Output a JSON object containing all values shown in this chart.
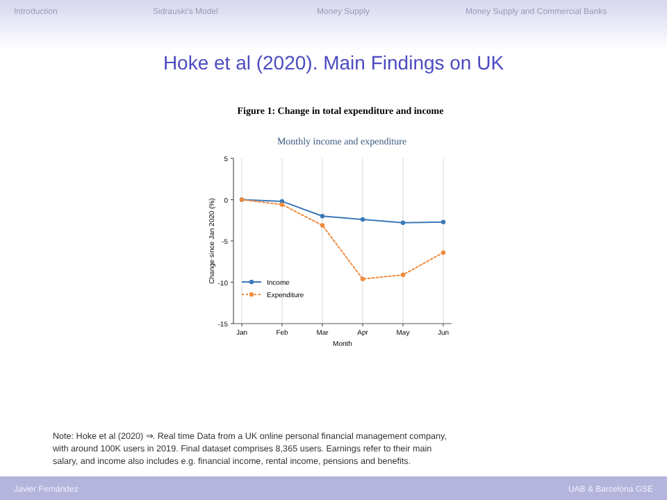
{
  "chart_data": {
    "type": "line",
    "title": "Monthly income and expenditure",
    "subtitle": "Figure 1: Change in total expenditure and income",
    "xlabel": "Month",
    "ylabel": "Change since Jan 2020 (%)",
    "categories": [
      "Jan",
      "Feb",
      "Mar",
      "Apr",
      "May",
      "Jun"
    ],
    "series": [
      {
        "name": "Income",
        "color": "#3a78b8",
        "values": [
          0,
          -0.2,
          -2.0,
          -2.4,
          -2.8,
          -2.7
        ],
        "line_style": "solid"
      },
      {
        "name": "Expenditure",
        "color": "#f08a3c",
        "values": [
          0,
          -0.6,
          -3.1,
          -9.6,
          -9.1,
          -6.4
        ],
        "line_style": "dotted"
      }
    ],
    "ylim": [
      -15,
      5
    ],
    "yticks": [
      5,
      0,
      -5,
      -10,
      -15
    ],
    "grid": "x",
    "legend": "bottom left",
    "marker": "circle",
    "annotations": [
      "Hoke et al (2020). Main Findings on UK",
      "Introduction",
      "Sidrauski's Model",
      "Money Supply",
      "Money Supply and Commercial Banks",
      "Note: Hoke et al (2020) ⇒. Real time Data from a UK online personal financial management company, with around 100K users in 2019. Final dataset comprises 8,365 users. Earnings refer to their main salary, and income also includes e.g. financial income, rental income, pensions and benefits.",
      "Javier Fernández",
      "UAB & Barcelona GSE"
    ]
  }
}
